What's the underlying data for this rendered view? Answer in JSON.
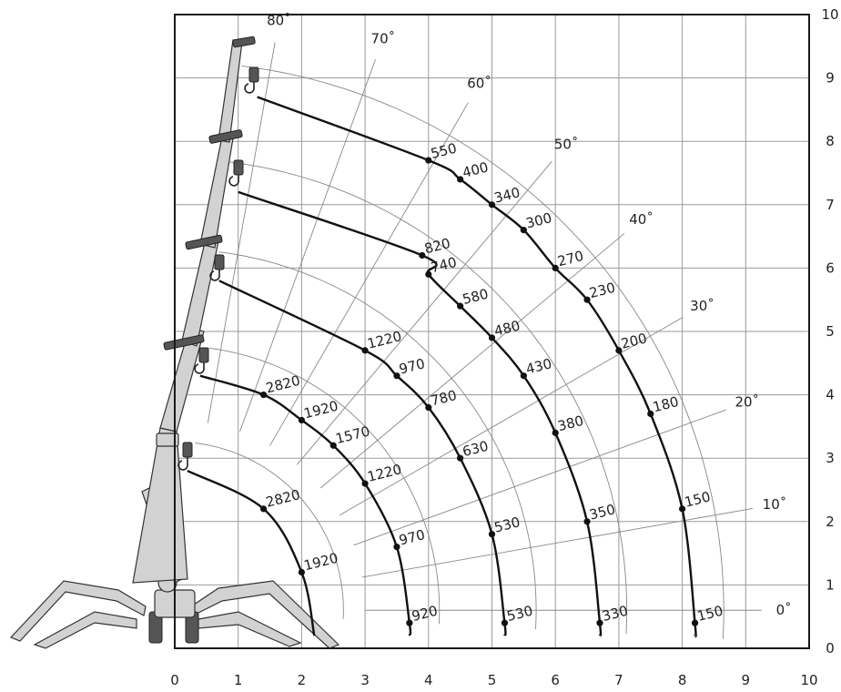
{
  "chart_data": {
    "type": "line",
    "title": "",
    "xlabel": "",
    "ylabel": "",
    "xlim": [
      0,
      10
    ],
    "ylim": [
      0,
      10
    ],
    "x_ticks": [
      "0",
      "1",
      "2",
      "3",
      "4",
      "5",
      "6",
      "7",
      "8",
      "9",
      "10"
    ],
    "y_ticks": [
      "0",
      "1",
      "2",
      "3",
      "4",
      "5",
      "6",
      "7",
      "8",
      "9",
      "10"
    ],
    "grid": true,
    "boom_angles": [
      {
        "label": "80˚",
        "deg": 80
      },
      {
        "label": "70˚",
        "deg": 70
      },
      {
        "label": "60˚",
        "deg": 60
      },
      {
        "label": "50˚",
        "deg": 50
      },
      {
        "label": "40˚",
        "deg": 40
      },
      {
        "label": "30˚",
        "deg": 30
      },
      {
        "label": "20˚",
        "deg": 20
      },
      {
        "label": "10˚",
        "deg": 10
      },
      {
        "label": "0˚",
        "deg": 0
      }
    ],
    "series": [
      {
        "hook_start": [
          0.2,
          2.8
        ],
        "end": [
          2.2,
          0.2
        ],
        "points": [
          {
            "x": 1.4,
            "y": 2.2,
            "label": "2820"
          },
          {
            "x": 2.0,
            "y": 1.2,
            "label": "1920"
          }
        ]
      },
      {
        "hook_start": [
          0.4,
          4.3
        ],
        "end": [
          3.7,
          0.2
        ],
        "points": [
          {
            "x": 1.4,
            "y": 4.0,
            "label": "2820"
          },
          {
            "x": 2.0,
            "y": 3.6,
            "label": "1920"
          },
          {
            "x": 2.5,
            "y": 3.2,
            "label": "1570"
          },
          {
            "x": 3.0,
            "y": 2.6,
            "label": "1220"
          },
          {
            "x": 3.5,
            "y": 1.6,
            "label": "970"
          },
          {
            "x": 3.7,
            "y": 0.4,
            "label": "920"
          }
        ]
      },
      {
        "hook_start": [
          0.7,
          5.8
        ],
        "end": [
          5.2,
          0.2
        ],
        "points": [
          {
            "x": 3.0,
            "y": 4.7,
            "label": "1220"
          },
          {
            "x": 3.5,
            "y": 4.3,
            "label": "970"
          },
          {
            "x": 4.0,
            "y": 3.8,
            "label": "780"
          },
          {
            "x": 4.5,
            "y": 3.0,
            "label": "630"
          },
          {
            "x": 5.0,
            "y": 1.8,
            "label": "530"
          },
          {
            "x": 5.2,
            "y": 0.4,
            "label": "530"
          }
        ]
      },
      {
        "hook_start": [
          1.0,
          7.2
        ],
        "end": [
          6.7,
          0.2
        ],
        "points": [
          {
            "x": 3.9,
            "y": 6.2,
            "label": "820"
          },
          {
            "x": 4.0,
            "y": 5.9,
            "label": "740"
          },
          {
            "x": 4.5,
            "y": 5.4,
            "label": "580"
          },
          {
            "x": 5.0,
            "y": 4.9,
            "label": "480"
          },
          {
            "x": 5.5,
            "y": 4.3,
            "label": "430"
          },
          {
            "x": 6.0,
            "y": 3.4,
            "label": "380"
          },
          {
            "x": 6.5,
            "y": 2.0,
            "label": "350"
          },
          {
            "x": 6.7,
            "y": 0.4,
            "label": "330"
          }
        ]
      },
      {
        "hook_start": [
          1.3,
          8.7
        ],
        "end": [
          8.2,
          0.2
        ],
        "points": [
          {
            "x": 4.0,
            "y": 7.7,
            "label": "550"
          },
          {
            "x": 4.5,
            "y": 7.4,
            "label": "400"
          },
          {
            "x": 5.0,
            "y": 7.0,
            "label": "340"
          },
          {
            "x": 5.5,
            "y": 6.6,
            "label": "300"
          },
          {
            "x": 6.0,
            "y": 6.0,
            "label": "270"
          },
          {
            "x": 6.5,
            "y": 5.5,
            "label": "230"
          },
          {
            "x": 7.0,
            "y": 4.7,
            "label": "200"
          },
          {
            "x": 7.5,
            "y": 3.7,
            "label": "180"
          },
          {
            "x": 8.0,
            "y": 2.2,
            "label": "150"
          },
          {
            "x": 8.2,
            "y": 0.4,
            "label": "150"
          }
        ]
      }
    ]
  }
}
